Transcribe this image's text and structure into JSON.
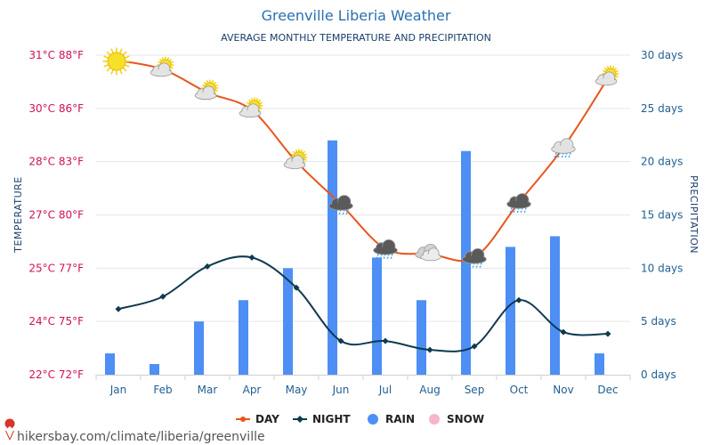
{
  "header": {
    "title": "Greenville Liberia Weather",
    "subtitle": "AVERAGE MONTHLY TEMPERATURE AND PRECIPITATION"
  },
  "footer": {
    "url": "hikersbay.com/climate/liberia/greenville"
  },
  "colors": {
    "day": "#e8551b",
    "night": "#0f3a4f",
    "rain": "#4d8ff5",
    "snow": "#f7b6c8",
    "left_axis": "#d0105a",
    "right_axis": "#1f5f93"
  },
  "chart_data": {
    "type": "line+bar",
    "categories": [
      "Jan",
      "Feb",
      "Mar",
      "Apr",
      "May",
      "Jun",
      "Jul",
      "Aug",
      "Sep",
      "Oct",
      "Nov",
      "Dec"
    ],
    "left_axis": {
      "label": "TEMPERATURE",
      "tick_labels": [
        "22°C 72°F",
        "24°C 75°F",
        "25°C 77°F",
        "27°C 80°F",
        "28°C 83°F",
        "30°C 86°F",
        "31°C 88°F"
      ],
      "range_c": [
        22,
        31
      ]
    },
    "right_axis": {
      "label": "PRECIPITATION",
      "tick_labels": [
        "0 days",
        "5 days",
        "10 days",
        "15 days",
        "20 days",
        "25 days",
        "30 days"
      ],
      "range": [
        0,
        30
      ]
    },
    "series": [
      {
        "name": "DAY",
        "type": "line",
        "values_c": [
          30.85,
          30.6,
          29.95,
          29.45,
          28.0,
          26.8,
          25.55,
          25.4,
          25.3,
          26.85,
          28.4,
          30.35
        ]
      },
      {
        "name": "NIGHT",
        "type": "line",
        "values_c": [
          23.85,
          24.2,
          25.05,
          25.3,
          24.45,
          22.95,
          22.95,
          22.7,
          22.8,
          24.1,
          23.2,
          23.15
        ]
      },
      {
        "name": "RAIN",
        "type": "bar",
        "values": [
          2,
          1,
          5,
          7,
          10,
          22,
          11,
          7,
          21,
          12,
          13,
          2
        ]
      },
      {
        "name": "SNOW",
        "type": "bar",
        "values": [
          0,
          0,
          0,
          0,
          0,
          0,
          0,
          0,
          0,
          0,
          0,
          0
        ]
      }
    ],
    "weather_icons": [
      "sun-icon",
      "partly-cloudy-icon",
      "partly-cloudy-icon",
      "partly-cloudy-icon",
      "partly-cloudy-icon",
      "rain-cloud-icon",
      "rain-cloud-icon",
      "cloudy-icon",
      "rain-cloud-icon",
      "rain-cloud-icon",
      "light-rain-icon",
      "partly-cloudy-icon"
    ],
    "legend": [
      "DAY",
      "NIGHT",
      "RAIN",
      "SNOW"
    ],
    "legend_position": "bottom",
    "grid": true
  }
}
